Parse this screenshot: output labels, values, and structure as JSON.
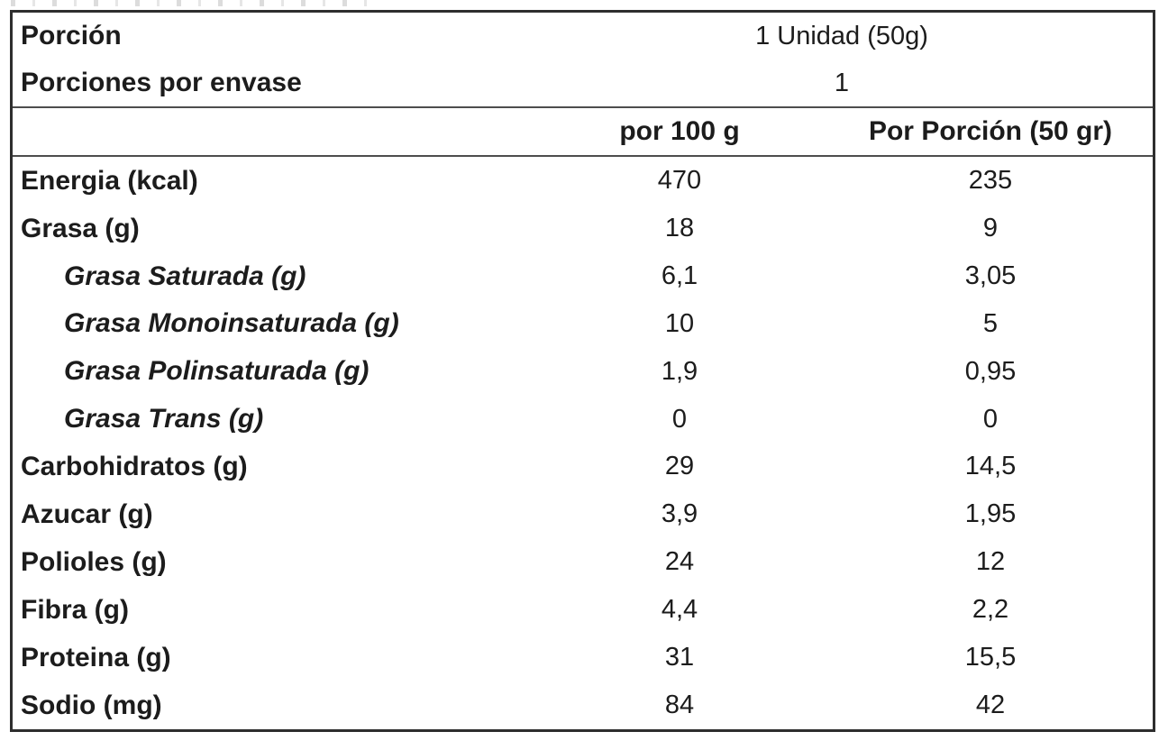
{
  "table": {
    "serving": {
      "label": "Porción",
      "value": "1 Unidad (50g)"
    },
    "servings_per_pack": {
      "label": "Porciones por envase",
      "value": "1"
    },
    "columns": {
      "per_100g": "por 100 g",
      "per_portion": "Por Porción (50 gr)"
    },
    "rows": [
      {
        "label": "Energia (kcal)",
        "per_100g": "470",
        "per_portion": "235"
      },
      {
        "label": "Grasa (g)",
        "per_100g": "18",
        "per_portion": "9"
      },
      {
        "label": "Grasa Saturada (g)",
        "per_100g": "6,1",
        "per_portion": "3,05"
      },
      {
        "label": "Grasa Monoinsaturada (g)",
        "per_100g": "10",
        "per_portion": "5"
      },
      {
        "label": "Grasa Polinsaturada (g)",
        "per_100g": "1,9",
        "per_portion": "0,95"
      },
      {
        "label": "Grasa Trans (g)",
        "per_100g": "0",
        "per_portion": "0"
      },
      {
        "label": "Carbohidratos (g)",
        "per_100g": "29",
        "per_portion": "14,5"
      },
      {
        "label": "Azucar (g)",
        "per_100g": "3,9",
        "per_portion": "1,95"
      },
      {
        "label": "Polioles (g)",
        "per_100g": "24",
        "per_portion": "12"
      },
      {
        "label": "Fibra (g)",
        "per_100g": "4,4",
        "per_portion": "2,2"
      },
      {
        "label": "Proteina (g)",
        "per_100g": "31",
        "per_portion": "15,5"
      },
      {
        "label": "Sodio (mg)",
        "per_100g": "84",
        "per_portion": "42"
      }
    ],
    "colors": {
      "background": "#ffffff",
      "text": "#1c1c1c",
      "border_outer": "#2e2e2e",
      "border_inner": "#4d4d4d"
    }
  }
}
